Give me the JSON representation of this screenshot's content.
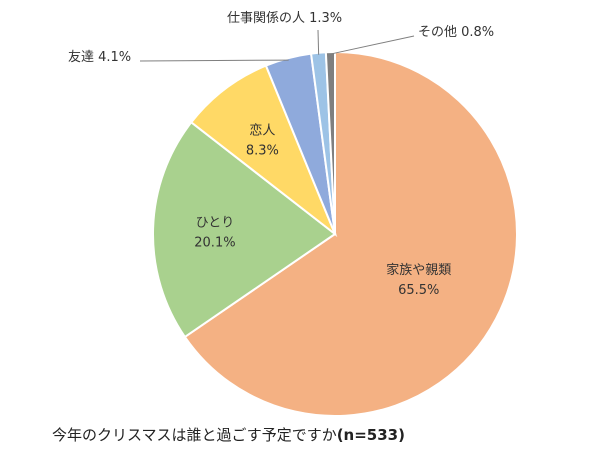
{
  "chart_data": {
    "type": "pie",
    "title": "今年のクリスマスは誰と過ごす予定ですか",
    "sample_size": "(n=533)",
    "start_angle_deg": 0,
    "direction": "clockwise",
    "slices": [
      {
        "label": "家族や親類",
        "value": 65.5,
        "value_label": "65.5%",
        "color": "#f4b183",
        "label_position": "inside"
      },
      {
        "label": "ひとり",
        "value": 20.1,
        "value_label": "20.1%",
        "color": "#a9d18e",
        "label_position": "inside"
      },
      {
        "label": "恋人",
        "value": 8.3,
        "value_label": "8.3%",
        "color": "#ffd966",
        "label_position": "inside"
      },
      {
        "label": "友達",
        "value": 4.1,
        "value_label": "4.1%",
        "color": "#8faadc",
        "label_position": "outside"
      },
      {
        "label": "仕事関係の人",
        "value": 1.3,
        "value_label": "1.3%",
        "color": "#9dc3e6",
        "label_position": "outside"
      },
      {
        "label": "その他",
        "value": 0.8,
        "value_label": "0.8%",
        "color": "#7f7f7f",
        "label_position": "outside"
      }
    ]
  }
}
